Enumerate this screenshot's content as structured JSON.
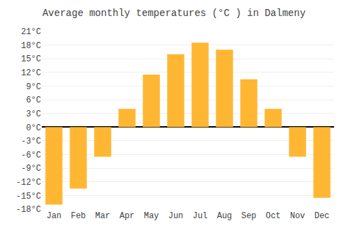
{
  "chart_data": {
    "type": "bar",
    "title": "Average monthly temperatures (°C ) in Dalmeny",
    "categories": [
      "Jan",
      "Feb",
      "Mar",
      "Apr",
      "May",
      "Jun",
      "Jul",
      "Aug",
      "Sep",
      "Oct",
      "Nov",
      "Dec"
    ],
    "values": [
      -17,
      -13.5,
      -6.5,
      4,
      11.5,
      16,
      18.5,
      17,
      10.5,
      4,
      -6.5,
      -15.5
    ],
    "color": "#FFB733",
    "ylim": [
      -18,
      21
    ],
    "yticks": [
      {
        "value": -18,
        "label": "-18°C"
      },
      {
        "value": -15,
        "label": "-15°C"
      },
      {
        "value": -12,
        "label": "-12°C"
      },
      {
        "value": -9,
        "label": "-9°C"
      },
      {
        "value": -6,
        "label": "-6°C"
      },
      {
        "value": -3,
        "label": "-3°C"
      },
      {
        "value": 0,
        "label": "0°C"
      },
      {
        "value": 3,
        "label": "3°C"
      },
      {
        "value": 6,
        "label": "6°C"
      },
      {
        "value": 9,
        "label": "9°C"
      },
      {
        "value": 12,
        "label": "12°C"
      },
      {
        "value": 15,
        "label": "15°C"
      },
      {
        "value": 18,
        "label": "18°C"
      },
      {
        "value": 21,
        "label": "21°C"
      }
    ],
    "grid": true
  }
}
